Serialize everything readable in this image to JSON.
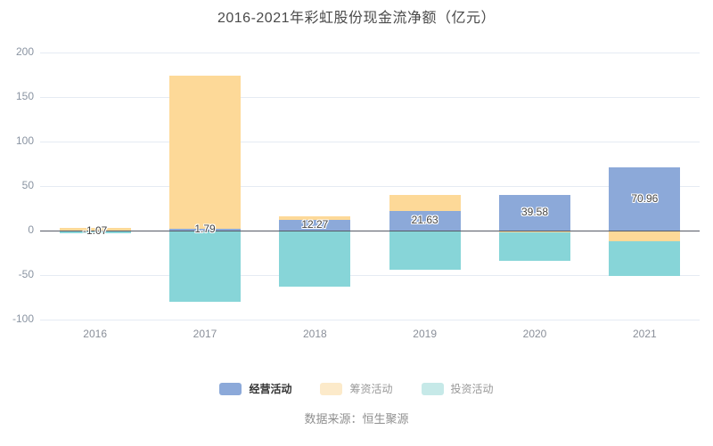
{
  "source": "数据来源：恒生聚源",
  "chart_data": {
    "type": "bar",
    "stacked": true,
    "title": "2016-2021年彩虹股份现金流净额（亿元）",
    "xlabel": "",
    "ylabel": "",
    "categories": [
      "2016",
      "2017",
      "2018",
      "2019",
      "2020",
      "2021"
    ],
    "series": [
      {
        "name": "经营活动",
        "color": "#8ca9d9",
        "values": [
          -1.07,
          1.79,
          12.27,
          21.63,
          39.58,
          70.96
        ],
        "labels": [
          "-1.07",
          "1.79",
          "12.27",
          "21.63",
          "39.58",
          "70.96"
        ]
      },
      {
        "name": "筹资活动",
        "color": "#fdd998",
        "values": [
          2.8,
          172.5,
          3.3,
          18.4,
          -1.5,
          -12.0
        ]
      },
      {
        "name": "投资活动",
        "color": "#87d5d8",
        "values": [
          -1.6,
          -80.0,
          -63.0,
          -44.0,
          -32.0,
          -39.0
        ]
      }
    ],
    "ylim": [
      -100,
      200
    ],
    "yticks": [
      200,
      150,
      100,
      50,
      0,
      -50,
      -100
    ],
    "grid": true,
    "legend_position": "bottom"
  },
  "legend": {
    "items": [
      {
        "label": "经营活动",
        "swatch": "#8ca9d9",
        "active": true
      },
      {
        "label": "筹资活动",
        "swatch": "#fceaca",
        "active": false
      },
      {
        "label": "投资活动",
        "swatch": "#c6e9e8",
        "active": false
      }
    ]
  }
}
